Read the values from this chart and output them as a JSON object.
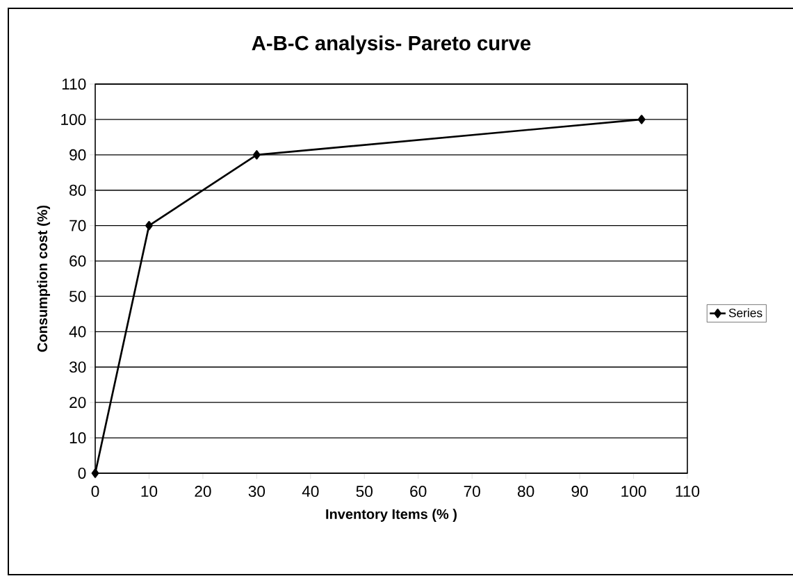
{
  "chart_data": {
    "type": "line",
    "title": "A-B-C analysis- Pareto curve",
    "xlabel": "Inventory Items (% )",
    "ylabel": "Consumption cost (%)",
    "x": [
      0,
      10,
      30,
      101.5
    ],
    "series": [
      {
        "name": "Series",
        "color": "#000000",
        "values": [
          0,
          70,
          90,
          100
        ]
      }
    ],
    "xlim": [
      0,
      110
    ],
    "ylim": [
      0,
      110
    ],
    "xticks": [
      0,
      10,
      20,
      30,
      40,
      50,
      60,
      70,
      80,
      90,
      100,
      110
    ],
    "yticks": [
      0,
      10,
      20,
      30,
      40,
      50,
      60,
      70,
      80,
      90,
      100,
      110
    ],
    "grid": "y",
    "legend": "right",
    "marker": "diamond",
    "line_style": "solid"
  }
}
